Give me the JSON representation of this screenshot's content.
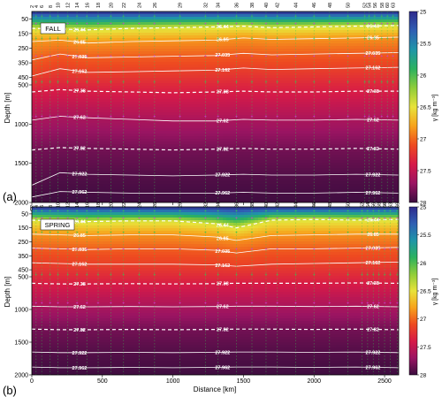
{
  "chart_data": [
    {
      "type": "heatmap",
      "panel_label": "(a)",
      "season_label": "FALL",
      "xlabel": "",
      "ylabel": "Depth [m]",
      "xlim": [
        0,
        2600
      ],
      "ylim": [
        2000,
        0
      ],
      "x_ticks": [
        "0",
        "500",
        "1000",
        "1500",
        "2000",
        "2500"
      ],
      "x_tick_values": [
        0,
        500,
        1000,
        1500,
        2000,
        2500
      ],
      "y_ticks": [
        "50",
        "150",
        "250",
        "350",
        "450",
        "500",
        "1000",
        "1500",
        "2000"
      ],
      "y_tick_values": [
        50,
        150,
        250,
        350,
        450,
        500,
        1000,
        1500,
        2000
      ],
      "y_scale": "piecewise: 0-500 m expanded, 500-2000 m compressed",
      "station_labels": [
        "2",
        "4",
        "6",
        "8",
        "10",
        "12",
        "14",
        "16",
        "18",
        "20",
        "22",
        "24",
        "26",
        "29",
        "32",
        "34",
        "36",
        "38",
        "40",
        "42",
        "44",
        "46",
        "48",
        "50",
        "52",
        "54",
        "56",
        "58",
        "60",
        "63"
      ],
      "station_x": [
        0,
        30,
        70,
        130,
        185,
        255,
        320,
        390,
        470,
        560,
        650,
        760,
        870,
        1050,
        1230,
        1320,
        1450,
        1560,
        1660,
        1740,
        1870,
        2000,
        2110,
        2240,
        2360,
        2390,
        2430,
        2480,
        2520,
        2560
      ],
      "contours": [
        {
          "label": "26.44",
          "style": "dashed",
          "x": [
            0,
            200,
            400,
            700,
            1000,
            1300,
            1500,
            1700,
            2000,
            2300,
            2600
          ],
          "depth": [
            115,
            120,
            125,
            115,
            110,
            105,
            100,
            110,
            105,
            100,
            95
          ]
        },
        {
          "label": "26.85",
          "style": "solid",
          "x": [
            0,
            200,
            400,
            700,
            1000,
            1300,
            1500,
            1700,
            2000,
            2300,
            2600
          ],
          "depth": [
            205,
            195,
            215,
            205,
            200,
            195,
            180,
            190,
            185,
            180,
            175
          ]
        },
        {
          "label": "27.035",
          "style": "solid",
          "x": [
            0,
            200,
            400,
            700,
            1000,
            1300,
            1500,
            1700,
            2000,
            2300,
            2600
          ],
          "depth": [
            330,
            290,
            315,
            310,
            305,
            300,
            285,
            295,
            290,
            285,
            280
          ]
        },
        {
          "label": "27.162",
          "style": "solid",
          "x": [
            0,
            200,
            400,
            700,
            1000,
            1300,
            1500,
            1700,
            2000,
            2300,
            2600
          ],
          "depth": [
            440,
            390,
            415,
            410,
            405,
            400,
            385,
            395,
            390,
            385,
            380
          ]
        },
        {
          "label": "27.38",
          "style": "dashed",
          "x": [
            0,
            200,
            400,
            700,
            1000,
            1300,
            1500,
            1700,
            2000,
            2300,
            2600
          ],
          "depth": [
            590,
            560,
            580,
            590,
            600,
            590,
            580,
            590,
            590,
            580,
            580
          ]
        },
        {
          "label": "27.62",
          "style": "solid",
          "x": [
            0,
            200,
            400,
            700,
            1000,
            1300,
            1500,
            1700,
            2000,
            2300,
            2600
          ],
          "depth": [
            950,
            900,
            920,
            940,
            960,
            960,
            940,
            950,
            950,
            940,
            950
          ]
        },
        {
          "label": "27.82",
          "style": "dashed",
          "x": [
            0,
            200,
            400,
            700,
            1000,
            1300,
            1500,
            1700,
            2000,
            2300,
            2600
          ],
          "depth": [
            1330,
            1300,
            1310,
            1320,
            1330,
            1320,
            1310,
            1320,
            1320,
            1310,
            1320
          ]
        },
        {
          "label": "27.922",
          "style": "solid",
          "x": [
            0,
            200,
            400,
            700,
            1000,
            1300,
            1500,
            1700,
            2000,
            2300,
            2600
          ],
          "depth": [
            1780,
            1620,
            1640,
            1650,
            1660,
            1650,
            1640,
            1650,
            1650,
            1640,
            1650
          ]
        },
        {
          "label": "27.962",
          "style": "solid",
          "x": [
            0,
            200,
            400,
            700,
            1000,
            1300,
            1500,
            1700,
            2000,
            2300,
            2600
          ],
          "depth": [
            1930,
            1860,
            1870,
            1880,
            1880,
            1880,
            1870,
            1880,
            1880,
            1870,
            1880
          ]
        }
      ],
      "colorbar": {
        "label": "γ [kg m⁻³]",
        "range": [
          25,
          28
        ],
        "ticks": [
          "25",
          "25.5",
          "26",
          "26.5",
          "27",
          "27.5",
          "28"
        ],
        "tick_values": [
          25,
          25.5,
          26,
          26.5,
          27,
          27.5,
          28
        ]
      }
    },
    {
      "type": "heatmap",
      "panel_label": "(b)",
      "season_label": "SPRING",
      "xlabel": "Distance [km]",
      "ylabel": "Depth [m]",
      "xlim": [
        0,
        2600
      ],
      "ylim": [
        2000,
        0
      ],
      "x_ticks": [
        "0",
        "500",
        "1000",
        "1500",
        "2000",
        "2500"
      ],
      "x_tick_values": [
        0,
        500,
        1000,
        1500,
        2000,
        2500
      ],
      "y_ticks": [
        "50",
        "150",
        "250",
        "350",
        "450",
        "500",
        "1000",
        "1500",
        "2000"
      ],
      "y_tick_values": [
        50,
        150,
        250,
        350,
        450,
        500,
        1000,
        1500,
        2000
      ],
      "y_scale": "piecewise: 0-500 m expanded, 500-2000 m compressed",
      "station_labels": [
        "2",
        "4",
        "6",
        "8",
        "10",
        "12",
        "14",
        "16",
        "18",
        "20",
        "22",
        "24",
        "26",
        "29",
        "32",
        "34",
        "36",
        "38",
        "40",
        "42",
        "44",
        "46",
        "48",
        "50",
        "52",
        "54",
        "56",
        "58",
        "60",
        "63",
        "66"
      ],
      "station_x": [
        0,
        30,
        70,
        130,
        185,
        255,
        320,
        390,
        470,
        560,
        650,
        760,
        870,
        1050,
        1230,
        1320,
        1450,
        1560,
        1660,
        1740,
        1870,
        2000,
        2110,
        2240,
        2340,
        2380,
        2420,
        2460,
        2500,
        2540,
        2590
      ],
      "contours": [
        {
          "label": "26.44",
          "style": "dashed",
          "x": [
            0,
            200,
            400,
            700,
            1000,
            1300,
            1450,
            1700,
            2000,
            2300,
            2600
          ],
          "depth": [
            95,
            100,
            105,
            100,
            100,
            120,
            150,
            95,
            90,
            95,
            90
          ]
        },
        {
          "label": "26.85",
          "style": "solid",
          "x": [
            0,
            200,
            400,
            700,
            1000,
            1300,
            1450,
            1700,
            2000,
            2300,
            2600
          ],
          "depth": [
            195,
            200,
            205,
            200,
            200,
            215,
            240,
            205,
            200,
            195,
            195
          ]
        },
        {
          "label": "27.035",
          "style": "solid",
          "x": [
            0,
            200,
            400,
            700,
            1000,
            1300,
            1450,
            1700,
            2000,
            2300,
            2600
          ],
          "depth": [
            295,
            300,
            305,
            300,
            300,
            310,
            330,
            300,
            300,
            295,
            290
          ]
        },
        {
          "label": "27.162",
          "style": "solid",
          "x": [
            0,
            200,
            400,
            700,
            1000,
            1300,
            1450,
            1700,
            2000,
            2300,
            2600
          ],
          "depth": [
            400,
            405,
            410,
            410,
            410,
            415,
            425,
            410,
            405,
            400,
            395
          ]
        },
        {
          "label": "27.38",
          "style": "dashed",
          "x": [
            0,
            200,
            400,
            700,
            1000,
            1300,
            1450,
            1700,
            2000,
            2300,
            2600
          ],
          "depth": [
            600,
            610,
            610,
            605,
            610,
            605,
            600,
            600,
            600,
            595,
            600
          ]
        },
        {
          "label": "27.62",
          "style": "solid",
          "x": [
            0,
            200,
            400,
            700,
            1000,
            1300,
            1450,
            1700,
            2000,
            2300,
            2600
          ],
          "depth": [
            950,
            960,
            960,
            955,
            960,
            955,
            950,
            950,
            955,
            950,
            960
          ]
        },
        {
          "label": "27.82",
          "style": "dashed",
          "x": [
            0,
            200,
            400,
            700,
            1000,
            1300,
            1450,
            1700,
            2000,
            2300,
            2600
          ],
          "depth": [
            1300,
            1310,
            1310,
            1305,
            1310,
            1305,
            1300,
            1300,
            1305,
            1300,
            1310
          ]
        },
        {
          "label": "27.922",
          "style": "solid",
          "x": [
            0,
            200,
            400,
            700,
            1000,
            1300,
            1450,
            1700,
            2000,
            2300,
            2600
          ],
          "depth": [
            1650,
            1660,
            1660,
            1655,
            1660,
            1655,
            1650,
            1650,
            1655,
            1650,
            1660
          ]
        },
        {
          "label": "27.962",
          "style": "solid",
          "x": [
            0,
            200,
            400,
            700,
            1000,
            1300,
            1450,
            1700,
            2000,
            2300,
            2600
          ],
          "depth": [
            1880,
            1890,
            1890,
            1885,
            1890,
            1885,
            1880,
            1880,
            1885,
            1880,
            1890
          ]
        }
      ],
      "colorbar": {
        "label": "γ [kg m⁻³]",
        "range": [
          25,
          28
        ],
        "ticks": [
          "25",
          "25.5",
          "26",
          "26.5",
          "27",
          "27.5",
          "28"
        ],
        "tick_values": [
          25,
          25.5,
          26,
          26.5,
          27,
          27.5,
          28
        ]
      }
    }
  ],
  "colormap": [
    "#2e2a8c",
    "#2f5fb3",
    "#1f95a8",
    "#2bb15f",
    "#8fcd3a",
    "#e8e23a",
    "#f7a21c",
    "#ee4a20",
    "#d61a48",
    "#9a1462",
    "#3a0c3e"
  ]
}
